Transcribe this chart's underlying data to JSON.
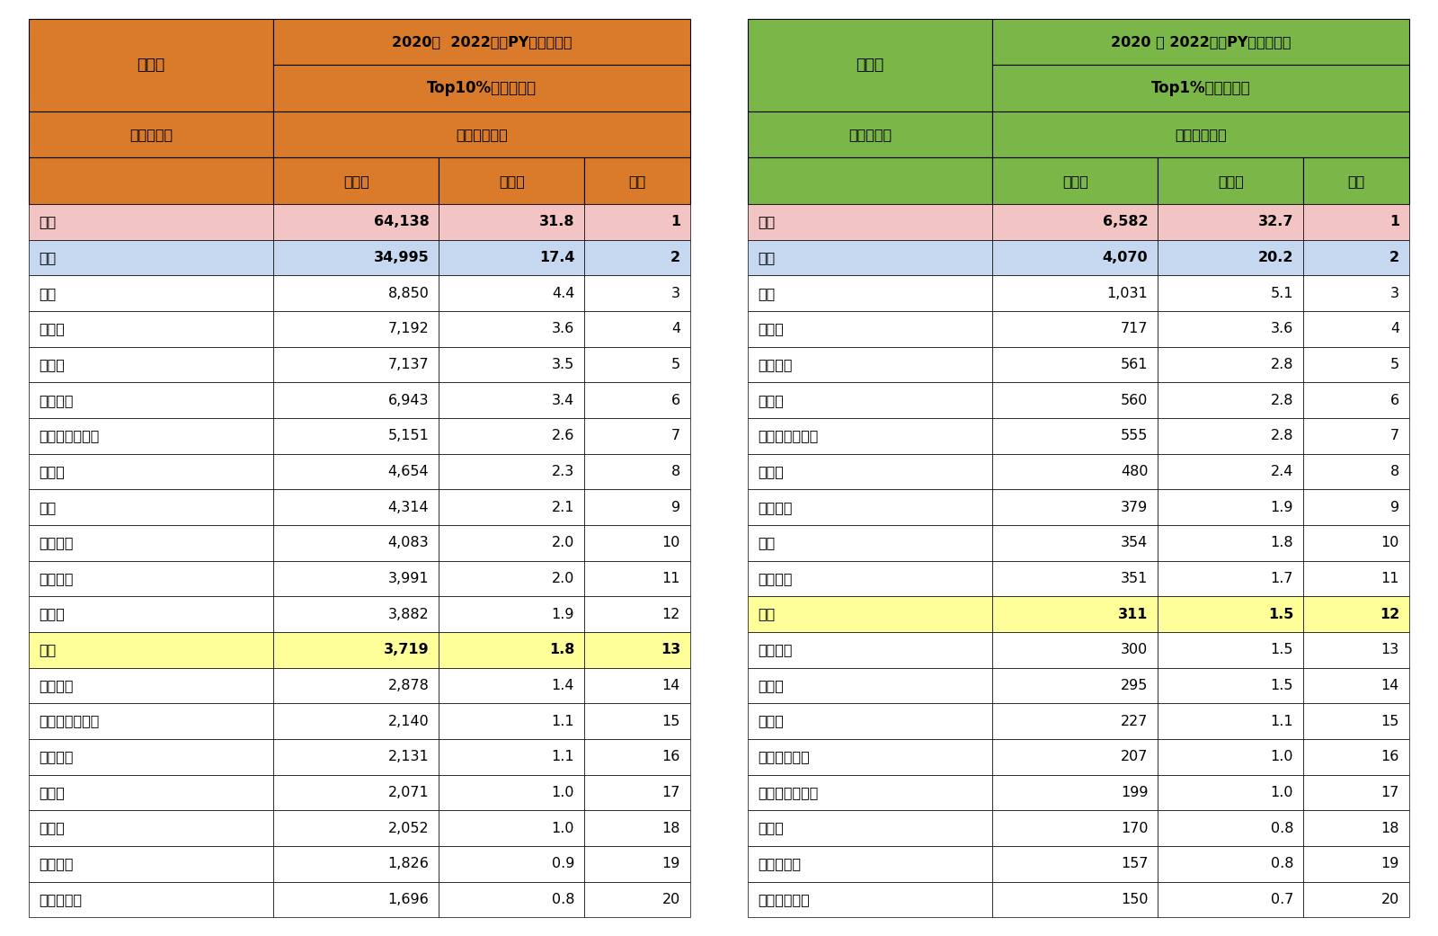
{
  "table1": {
    "title_row1": "2020－  2022年（PY）（平均）",
    "title_row2": "Top10%補正論文数",
    "title_row3": "分数カウント",
    "header_left": "全分野",
    "col_header_left": "国・地域名",
    "col_headers": [
      "論文数",
      "シェア",
      "順位"
    ],
    "rows": [
      [
        "中国",
        "64,138",
        "31.8",
        "1"
      ],
      [
        "米国",
        "34,995",
        "17.4",
        "2"
      ],
      [
        "英国",
        "8,850",
        "4.4",
        "3"
      ],
      [
        "インド",
        "7,192",
        "3.6",
        "4"
      ],
      [
        "ドイツ",
        "7,137",
        "3.5",
        "5"
      ],
      [
        "イタリア",
        "6,943",
        "3.4",
        "6"
      ],
      [
        "オーストラリア",
        "5,151",
        "2.6",
        "7"
      ],
      [
        "カナダ",
        "4,654",
        "2.3",
        "8"
      ],
      [
        "韓国",
        "4,314",
        "2.1",
        "9"
      ],
      [
        "フランス",
        "4,083",
        "2.0",
        "10"
      ],
      [
        "スペイン",
        "3,991",
        "2.0",
        "11"
      ],
      [
        "イラン",
        "3,882",
        "1.9",
        "12"
      ],
      [
        "日本",
        "3,719",
        "1.8",
        "13"
      ],
      [
        "オランダ",
        "2,878",
        "1.4",
        "14"
      ],
      [
        "サウジアラビア",
        "2,140",
        "1.1",
        "15"
      ],
      [
        "ブラジル",
        "2,131",
        "1.1",
        "16"
      ],
      [
        "スイス",
        "2,071",
        "1.0",
        "17"
      ],
      [
        "トルコ",
        "2,052",
        "1.0",
        "18"
      ],
      [
        "エジプト",
        "1,826",
        "0.9",
        "19"
      ],
      [
        "パキスタン",
        "1,696",
        "0.8",
        "20"
      ]
    ],
    "highlight_rows": [
      0,
      1
    ],
    "japan_row": 12,
    "highlight_colors": [
      "#f2c4c4",
      "#c5d8f0"
    ],
    "japan_color": "#ffff99",
    "header_bg": "#d97b2a",
    "white_bg": "#ffffff"
  },
  "table2": {
    "title_row1": "2020 － 2022年（PY）（平均）",
    "title_row2": "Top1%補正論文数",
    "title_row3": "分数カウント",
    "header_left": "全分野",
    "col_header_left": "国・地域名",
    "col_headers": [
      "論文数",
      "シェア",
      "順位"
    ],
    "rows": [
      [
        "中国",
        "6,582",
        "32.7",
        "1"
      ],
      [
        "米国",
        "4,070",
        "20.2",
        "2"
      ],
      [
        "英国",
        "1,031",
        "5.1",
        "3"
      ],
      [
        "ドイツ",
        "717",
        "3.6",
        "4"
      ],
      [
        "イタリア",
        "561",
        "2.8",
        "5"
      ],
      [
        "インド",
        "560",
        "2.8",
        "6"
      ],
      [
        "オーストラリア",
        "555",
        "2.8",
        "7"
      ],
      [
        "カナダ",
        "480",
        "2.4",
        "8"
      ],
      [
        "フランス",
        "379",
        "1.9",
        "9"
      ],
      [
        "韓国",
        "354",
        "1.8",
        "10"
      ],
      [
        "スペイン",
        "351",
        "1.7",
        "11"
      ],
      [
        "日本",
        "311",
        "1.5",
        "12"
      ],
      [
        "オランダ",
        "300",
        "1.5",
        "13"
      ],
      [
        "イラン",
        "295",
        "1.5",
        "14"
      ],
      [
        "スイス",
        "227",
        "1.1",
        "15"
      ],
      [
        "シンガポール",
        "207",
        "1.0",
        "16"
      ],
      [
        "サウジアラビア",
        "199",
        "1.0",
        "17"
      ],
      [
        "トルコ",
        "170",
        "0.8",
        "18"
      ],
      [
        "パキスタン",
        "157",
        "0.8",
        "19"
      ],
      [
        "スウェーデン",
        "150",
        "0.7",
        "20"
      ]
    ],
    "highlight_rows": [
      0,
      1
    ],
    "japan_row": 11,
    "highlight_colors": [
      "#f2c4c4",
      "#c5d8f0"
    ],
    "japan_color": "#ffff99",
    "header_bg": "#7ab648",
    "white_bg": "#ffffff"
  },
  "bg_color": "#ffffff",
  "border_color": "#000000",
  "font_size": 11.5,
  "header_font_size": 12
}
